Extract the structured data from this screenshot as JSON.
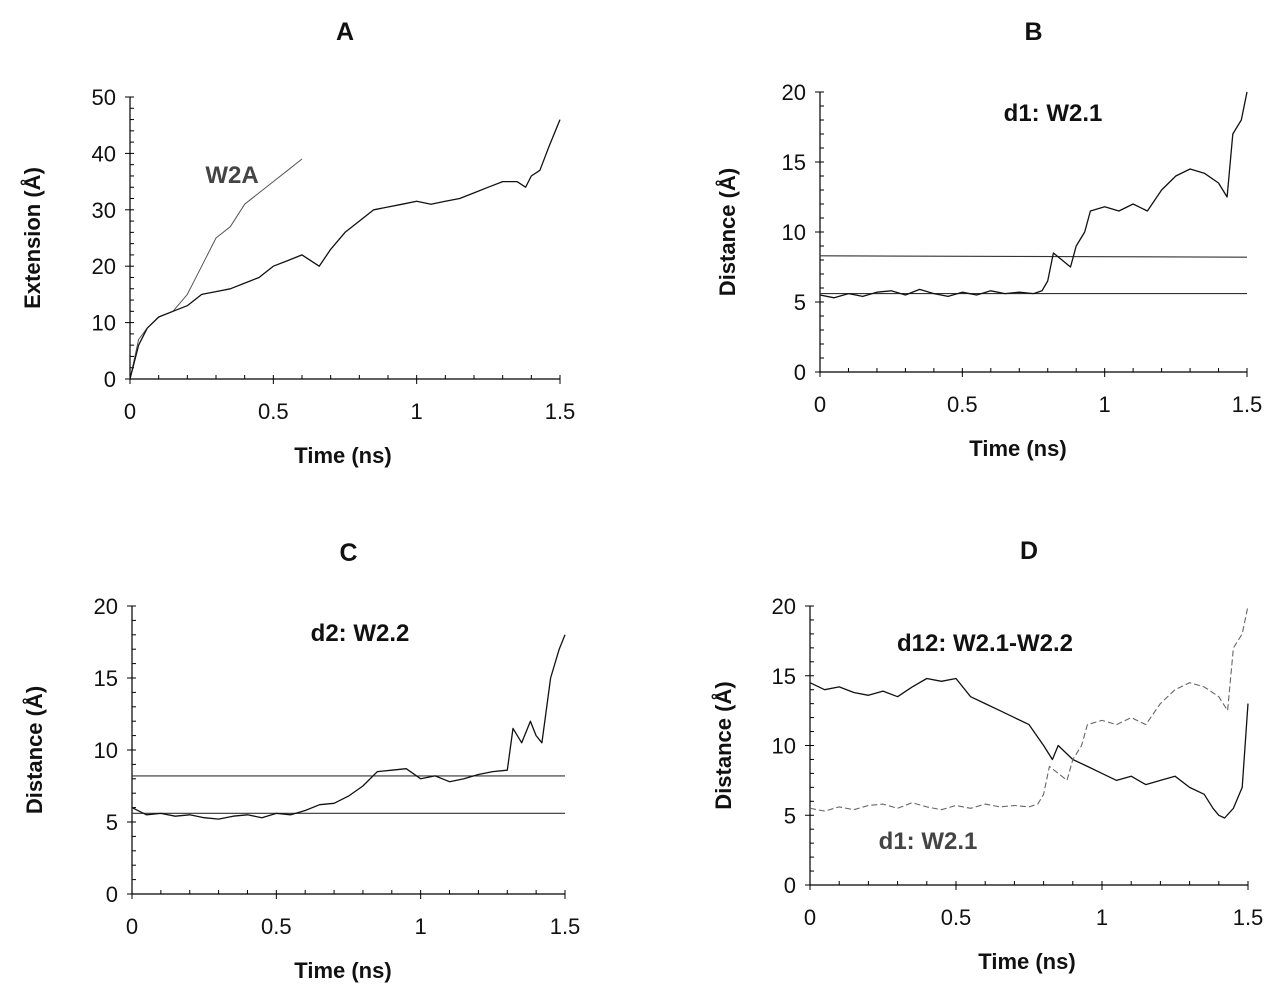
{
  "chart_data": [
    {
      "type": "line",
      "panel_label": "A",
      "xlabel": "Time (ns)",
      "ylabel": "Extension (Å)",
      "xlim": [
        0,
        1.5
      ],
      "ylim": [
        0,
        50
      ],
      "xticks": [
        "0",
        "0.5",
        "1",
        "1.5"
      ],
      "yticks": [
        "0",
        "10",
        "20",
        "30",
        "40",
        "50"
      ],
      "annotations": [
        "W2A"
      ],
      "series": [
        {
          "style": "thin-gray",
          "x": [
            0,
            0.03,
            0.06,
            0.1,
            0.15,
            0.2,
            0.25,
            0.3,
            0.35,
            0.4,
            0.45,
            0.5,
            0.55,
            0.6
          ],
          "y": [
            0,
            7,
            9,
            11,
            12,
            15,
            20,
            25,
            27,
            31,
            33,
            35,
            37,
            39
          ]
        },
        {
          "style": "solid-black",
          "x": [
            0,
            0.03,
            0.06,
            0.1,
            0.15,
            0.2,
            0.25,
            0.3,
            0.35,
            0.4,
            0.45,
            0.5,
            0.55,
            0.6,
            0.63,
            0.66,
            0.7,
            0.75,
            0.8,
            0.85,
            0.9,
            0.95,
            1.0,
            1.05,
            1.1,
            1.15,
            1.2,
            1.25,
            1.3,
            1.35,
            1.38,
            1.4,
            1.43,
            1.46,
            1.5
          ],
          "y": [
            0,
            6,
            9,
            11,
            12,
            13,
            15,
            15.5,
            16,
            17,
            18,
            20,
            21,
            22,
            21,
            20,
            23,
            26,
            28,
            30,
            30.5,
            31,
            31.5,
            31,
            31.5,
            32,
            33,
            34,
            35,
            35,
            34,
            36,
            37,
            41,
            46
          ]
        }
      ]
    },
    {
      "type": "line",
      "panel_label": "B",
      "xlabel": "Time (ns)",
      "ylabel": "Distance (Å)",
      "xlim": [
        0,
        1.5
      ],
      "ylim": [
        0,
        20
      ],
      "xticks": [
        "0",
        "0.5",
        "1",
        "1.5"
      ],
      "yticks": [
        "0",
        "5",
        "10",
        "15",
        "20"
      ],
      "annotations": [
        "d1: W2.1"
      ],
      "reference_lines": [
        {
          "x": [
            0,
            1.5
          ],
          "y": [
            8.3,
            8.2
          ]
        },
        {
          "x": [
            0,
            1.5
          ],
          "y": [
            5.6,
            5.6
          ]
        }
      ],
      "series": [
        {
          "style": "solid-black",
          "x": [
            0,
            0.05,
            0.1,
            0.15,
            0.2,
            0.25,
            0.3,
            0.35,
            0.4,
            0.45,
            0.5,
            0.55,
            0.6,
            0.65,
            0.7,
            0.75,
            0.78,
            0.8,
            0.82,
            0.85,
            0.88,
            0.9,
            0.93,
            0.95,
            1.0,
            1.05,
            1.1,
            1.15,
            1.2,
            1.25,
            1.3,
            1.35,
            1.4,
            1.43,
            1.45,
            1.48,
            1.5
          ],
          "y": [
            5.5,
            5.3,
            5.6,
            5.4,
            5.7,
            5.8,
            5.5,
            5.9,
            5.6,
            5.4,
            5.7,
            5.5,
            5.8,
            5.6,
            5.7,
            5.6,
            5.8,
            6.5,
            8.5,
            8.0,
            7.5,
            9.0,
            10.0,
            11.5,
            11.8,
            11.5,
            12.0,
            11.5,
            13.0,
            14.0,
            14.5,
            14.2,
            13.5,
            12.5,
            17.0,
            18.0,
            20.0
          ]
        }
      ]
    },
    {
      "type": "line",
      "panel_label": "C",
      "xlabel": "Time (ns)",
      "ylabel": "Distance (Å)",
      "xlim": [
        0,
        1.5
      ],
      "ylim": [
        0,
        20
      ],
      "xticks": [
        "0",
        "0.5",
        "1",
        "1.5"
      ],
      "yticks": [
        "0",
        "5",
        "10",
        "15",
        "20"
      ],
      "annotations": [
        "d2:  W2.2"
      ],
      "reference_lines": [
        {
          "x": [
            0,
            1.5
          ],
          "y": [
            8.2,
            8.2
          ]
        },
        {
          "x": [
            0,
            1.5
          ],
          "y": [
            5.6,
            5.6
          ]
        }
      ],
      "series": [
        {
          "style": "solid-black",
          "x": [
            0,
            0.05,
            0.1,
            0.15,
            0.2,
            0.25,
            0.3,
            0.35,
            0.4,
            0.45,
            0.5,
            0.55,
            0.6,
            0.65,
            0.7,
            0.75,
            0.8,
            0.85,
            0.9,
            0.95,
            1.0,
            1.05,
            1.1,
            1.15,
            1.2,
            1.25,
            1.3,
            1.32,
            1.35,
            1.38,
            1.4,
            1.42,
            1.45,
            1.48,
            1.5
          ],
          "y": [
            6.0,
            5.5,
            5.6,
            5.4,
            5.5,
            5.3,
            5.2,
            5.4,
            5.5,
            5.3,
            5.6,
            5.5,
            5.8,
            6.2,
            6.3,
            6.8,
            7.5,
            8.5,
            8.6,
            8.7,
            8.0,
            8.2,
            7.8,
            8.0,
            8.3,
            8.5,
            8.6,
            11.5,
            10.5,
            12.0,
            11.0,
            10.5,
            15.0,
            17.0,
            18.0
          ]
        }
      ]
    },
    {
      "type": "line",
      "panel_label": "D",
      "xlabel": "Time (ns)",
      "ylabel": "Distance (Å)",
      "xlim": [
        0,
        1.5
      ],
      "ylim": [
        0,
        20
      ],
      "xticks": [
        "0",
        "0.5",
        "1",
        "1.5"
      ],
      "yticks": [
        "0",
        "5",
        "10",
        "15",
        "20"
      ],
      "annotations": [
        "d12: W2.1-W2.2",
        "d1: W2.1"
      ],
      "series": [
        {
          "style": "solid-black",
          "x": [
            0,
            0.05,
            0.1,
            0.15,
            0.2,
            0.25,
            0.3,
            0.35,
            0.4,
            0.45,
            0.5,
            0.55,
            0.6,
            0.65,
            0.7,
            0.75,
            0.8,
            0.83,
            0.85,
            0.9,
            0.95,
            1.0,
            1.05,
            1.1,
            1.15,
            1.2,
            1.25,
            1.3,
            1.35,
            1.38,
            1.4,
            1.42,
            1.45,
            1.48,
            1.5
          ],
          "y": [
            14.5,
            14.0,
            14.2,
            13.8,
            13.6,
            13.9,
            13.5,
            14.2,
            14.8,
            14.6,
            14.8,
            13.5,
            13.0,
            12.5,
            12.0,
            11.5,
            10.0,
            9.0,
            10.0,
            9.0,
            8.5,
            8.0,
            7.5,
            7.8,
            7.2,
            7.5,
            7.8,
            7.0,
            6.5,
            5.5,
            5.0,
            4.8,
            5.5,
            7.0,
            13.0
          ]
        },
        {
          "style": "dashed-gray",
          "x": [
            0,
            0.05,
            0.1,
            0.15,
            0.2,
            0.25,
            0.3,
            0.35,
            0.4,
            0.45,
            0.5,
            0.55,
            0.6,
            0.65,
            0.7,
            0.75,
            0.78,
            0.8,
            0.82,
            0.85,
            0.88,
            0.9,
            0.93,
            0.95,
            1.0,
            1.05,
            1.1,
            1.15,
            1.2,
            1.25,
            1.3,
            1.35,
            1.4,
            1.43,
            1.45,
            1.48,
            1.5
          ],
          "y": [
            5.5,
            5.3,
            5.6,
            5.4,
            5.7,
            5.8,
            5.5,
            5.9,
            5.6,
            5.4,
            5.7,
            5.5,
            5.8,
            5.6,
            5.7,
            5.6,
            5.8,
            6.5,
            8.5,
            8.0,
            7.5,
            9.0,
            10.0,
            11.5,
            11.8,
            11.5,
            12.0,
            11.5,
            13.0,
            14.0,
            14.5,
            14.2,
            13.5,
            12.5,
            17.0,
            18.0,
            20.0
          ]
        }
      ]
    }
  ]
}
